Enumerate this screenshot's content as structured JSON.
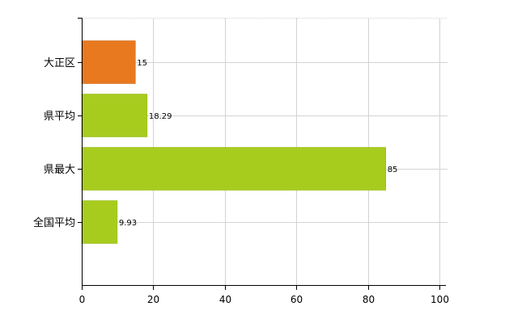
{
  "chart_data": {
    "type": "bar",
    "orientation": "horizontal",
    "title": "",
    "xlabel": "",
    "ylabel": "",
    "categories": [
      "大正区",
      "県平均",
      "県最大",
      "全国平均"
    ],
    "values": [
      15,
      18.29,
      85,
      9.93
    ],
    "value_labels": [
      "15",
      "18.29",
      "85",
      "9.93"
    ],
    "bar_colors": [
      "#e8791f",
      "#a8cc1e",
      "#a8cc1e",
      "#a8cc1e"
    ],
    "xlim": [
      0,
      100
    ],
    "xticks": [
      0,
      20,
      40,
      60,
      80,
      100
    ],
    "grid": true,
    "legend": "none"
  }
}
